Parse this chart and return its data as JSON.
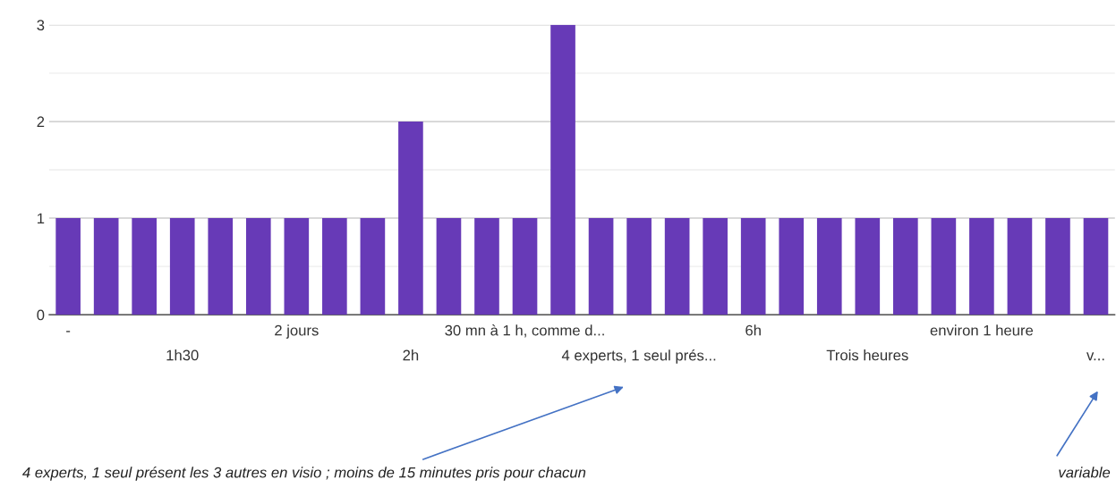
{
  "chart_data": {
    "type": "bar",
    "categories": [
      "-",
      null,
      null,
      "1h30",
      null,
      null,
      "2 jours",
      null,
      null,
      "2h",
      null,
      null,
      "30 mn à 1 h, comme d...",
      null,
      null,
      "4 experts, 1 seul prés...",
      null,
      null,
      "6h",
      null,
      null,
      "Trois heures",
      null,
      null,
      "environ 1 heure",
      null,
      null,
      "v..."
    ],
    "values": [
      1,
      1,
      1,
      1,
      1,
      1,
      1,
      1,
      1,
      2,
      1,
      1,
      1,
      3,
      1,
      1,
      1,
      1,
      1,
      1,
      1,
      1,
      1,
      1,
      1,
      1,
      1,
      1
    ],
    "color": "#673ab7",
    "ylim": [
      0,
      3
    ],
    "yticks": [
      0,
      {
        "value": 0.5,
        "label": null
      },
      1,
      {
        "value": 1.5,
        "label": null
      },
      2,
      {
        "value": 2.5,
        "label": null
      },
      3
    ],
    "grid": "y",
    "annotations": [
      "4 experts, 1 seul présent les 3 autres en visio ; moins de 15 minutes pris pour chacun",
      "variable"
    ]
  }
}
